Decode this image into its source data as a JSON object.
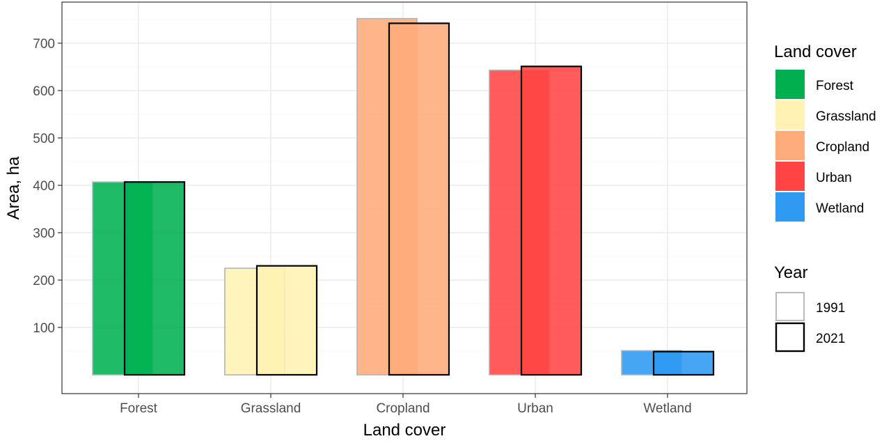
{
  "chart_data": {
    "type": "bar",
    "xlabel": "Land cover",
    "ylabel": "Area, ha",
    "categories": [
      "Forest",
      "Grassland",
      "Cropland",
      "Urban",
      "Wetland"
    ],
    "colors": [
      "#00b050",
      "#fff2b3",
      "#ffab7a",
      "#ff4444",
      "#2e9af2"
    ],
    "series": [
      {
        "name": "1991",
        "values": [
          407,
          225,
          752,
          643,
          51
        ],
        "outline": "#b3b3b3"
      },
      {
        "name": "2021",
        "values": [
          407,
          230,
          742,
          651,
          49
        ],
        "outline": "#000000"
      }
    ],
    "ylim": [
      0,
      785
    ],
    "yticks": [
      100,
      200,
      300,
      400,
      500,
      600,
      700
    ],
    "grid": true,
    "legend_position": "right",
    "legend": {
      "land_cover_title": "Land cover",
      "land_cover_items": [
        "Forest",
        "Grassland",
        "Cropland",
        "Urban",
        "Wetland"
      ],
      "year_title": "Year",
      "year_items": [
        "1991",
        "2021"
      ]
    }
  }
}
